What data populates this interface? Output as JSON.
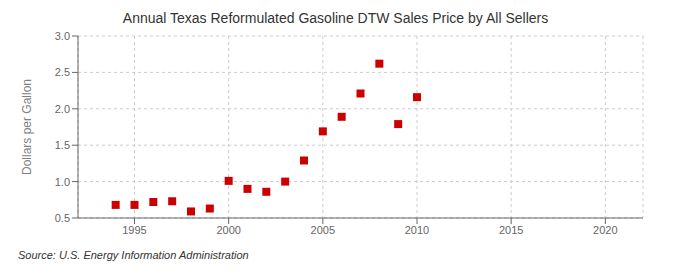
{
  "chart_data": {
    "type": "scatter",
    "title": "Annual Texas Reformulated Gasoline DTW Sales Price by All Sellers",
    "ylabel": "Dollars per Gallon",
    "annotations": [
      "Source: U.S. Energy Information Administration"
    ],
    "x": [
      1994,
      1995,
      1996,
      1997,
      1998,
      1999,
      2000,
      2001,
      2002,
      2003,
      2004,
      2005,
      2006,
      2007,
      2008,
      2009,
      2010
    ],
    "values": [
      0.68,
      0.68,
      0.72,
      0.73,
      0.59,
      0.63,
      1.01,
      0.9,
      0.86,
      1.0,
      1.29,
      1.69,
      1.89,
      2.21,
      2.62,
      1.79,
      2.16
    ],
    "color": "#cc0000",
    "marker": "square",
    "xlim": [
      1992,
      2022
    ],
    "ylim": [
      0.5,
      3.0
    ],
    "xticks": [
      1995,
      2000,
      2005,
      2010,
      2015,
      2020
    ],
    "yticks": [
      0.5,
      {
        "value": 1.0,
        "label": "1.0"
      },
      1.5,
      {
        "value": 2.0,
        "label": "2.0"
      },
      2.5,
      {
        "value": 3.0,
        "label": "3.0"
      }
    ],
    "grid": true
  }
}
